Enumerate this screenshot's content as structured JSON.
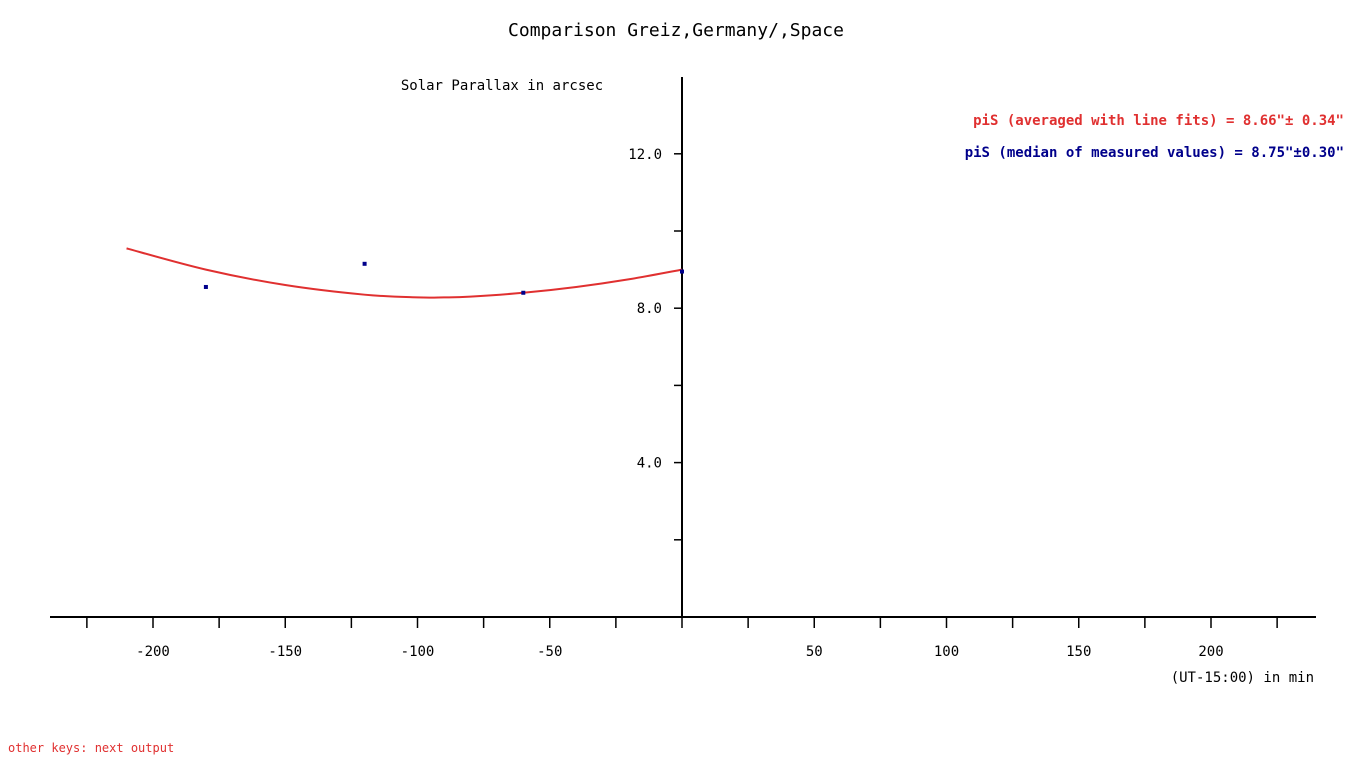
{
  "window": {
    "title": "Comparison Greiz,Germany/,Space",
    "footer": "other keys: next output"
  },
  "colors": {
    "fit_line": "#e03030",
    "points": "#00008b",
    "axes": "#000000"
  },
  "chart_data": {
    "type": "line",
    "title": "Comparison Greiz,Germany/,Space",
    "ylabel": "Solar Parallax in arcsec",
    "xlabel": "(UT-15:00) in min",
    "xlim": [
      -240,
      240
    ],
    "ylim": [
      0,
      14
    ],
    "x_ticks_major": [
      -200,
      -150,
      -100,
      -50,
      50,
      100,
      150,
      200
    ],
    "x_ticks_minor": [
      -225,
      -175,
      -125,
      -75,
      -25,
      0,
      25,
      75,
      125,
      175,
      225
    ],
    "y_ticks_labeled": [
      "4.0",
      "8.0",
      "12.0"
    ],
    "y_ticks_values": [
      4,
      8,
      12
    ],
    "y_ticks_minor": [
      2,
      6,
      10
    ],
    "grid": false,
    "annotations": [
      {
        "text": "piS (averaged with line fits) = 8.66\"± 0.34\"",
        "color": "#e03030"
      },
      {
        "text": "piS (median of measured values) = 8.75\"±0.30\"",
        "color": "#00008b"
      }
    ],
    "series": [
      {
        "kind": "line",
        "color": "#e03030",
        "x": [
          -210,
          -180,
          -150,
          -120,
          -100,
          -90,
          -80,
          -60,
          -40,
          -20,
          0
        ],
        "y": [
          9.55,
          9.0,
          8.6,
          8.35,
          8.28,
          8.28,
          8.3,
          8.4,
          8.55,
          8.75,
          9.0
        ]
      },
      {
        "kind": "scatter",
        "color": "#00008b",
        "x": [
          -180,
          -120,
          -60,
          0
        ],
        "y": [
          8.55,
          9.15,
          8.4,
          8.95
        ]
      }
    ]
  }
}
